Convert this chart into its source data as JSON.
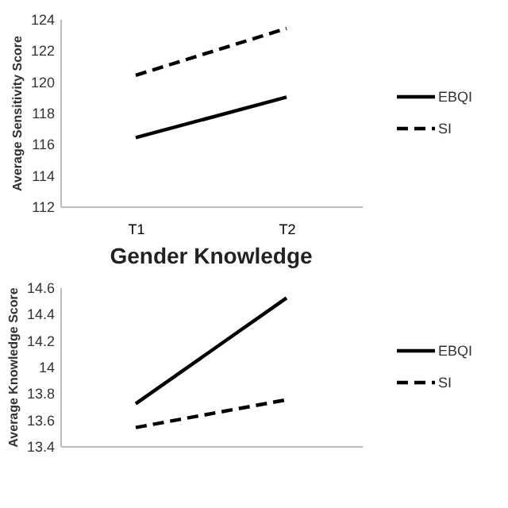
{
  "chart_data": [
    {
      "type": "line",
      "ylabel": "Average Sensitivity Score",
      "categories": [
        "T1",
        "T2"
      ],
      "ylim": [
        112,
        124
      ],
      "yticks": [
        112,
        114,
        116,
        118,
        120,
        122,
        124
      ],
      "grid": false,
      "legend": "right",
      "series": [
        {
          "name": "EBQI",
          "color": "#000000",
          "values": [
            116.4,
            119.0
          ],
          "line_style": "solid"
        },
        {
          "name": "SI",
          "color": "#000000",
          "values": [
            120.4,
            123.4
          ],
          "line_style": "dashed"
        }
      ]
    },
    {
      "type": "line",
      "title": "Gender Knowledge",
      "ylabel": "Average Knowledge Score",
      "categories": [
        null,
        null
      ],
      "ylim": [
        13.4,
        14.6
      ],
      "yticks": [
        13.4,
        13.6,
        13.8,
        14,
        14.2,
        14.4,
        14.6
      ],
      "tick_labels": "y",
      "grid": false,
      "legend": "right",
      "series": [
        {
          "name": "EBQI",
          "color": "#000000",
          "values": [
            13.72,
            14.52
          ],
          "line_style": "solid"
        },
        {
          "name": "SI",
          "color": "#000000",
          "values": [
            13.54,
            13.75
          ],
          "line_style": "dashed"
        }
      ]
    }
  ]
}
